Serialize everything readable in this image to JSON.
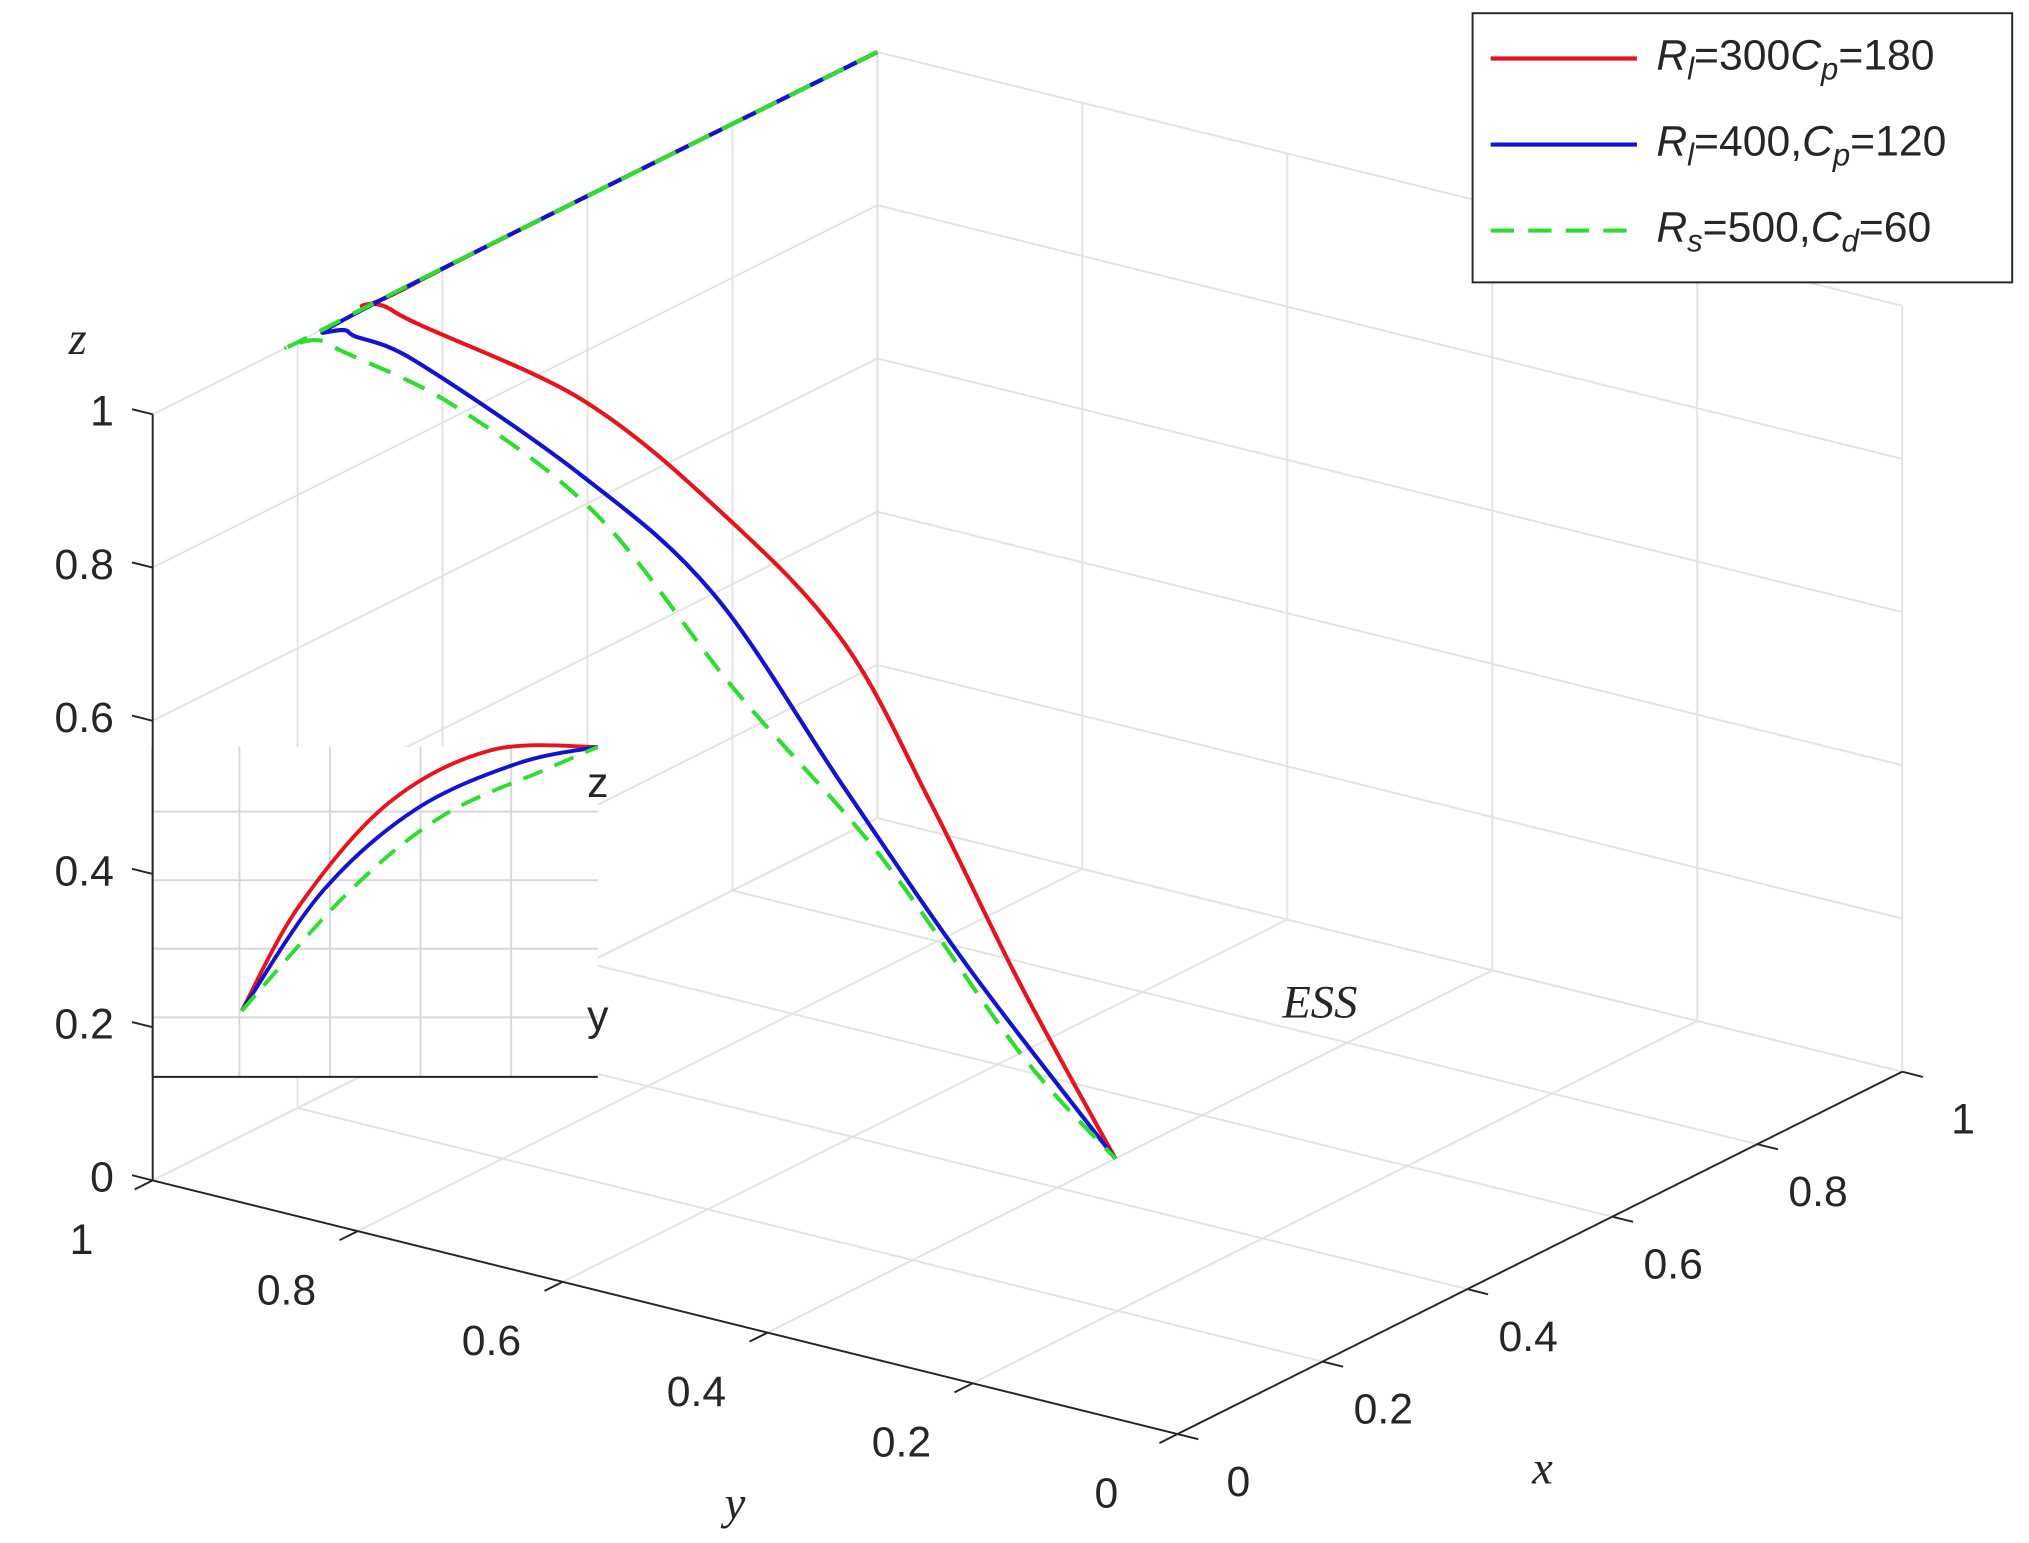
{
  "chart_data": {
    "type": "line3d",
    "xlabel": "x",
    "ylabel": "y",
    "zlabel": "z",
    "xlim": [
      0,
      1
    ],
    "ylim": [
      0,
      1
    ],
    "zlim": [
      0,
      1
    ],
    "xticks": [
      0,
      0.2,
      0.4,
      0.6,
      0.8,
      1
    ],
    "yticks": [
      0,
      0.2,
      0.4,
      0.6,
      0.8,
      1
    ],
    "zticks": [
      0,
      0.2,
      0.4,
      0.6,
      0.8,
      1
    ],
    "grid": true,
    "legend": "upper right",
    "annotations": [
      "ESS"
    ],
    "series": [
      {
        "name": "Rl=300Cp=180",
        "color": "#e8141c",
        "style": "solid",
        "x": [
          1,
          0.36,
          0.33,
          0.45,
          0.51,
          0.53,
          0.51,
          0.49,
          0.48
        ],
        "y": [
          1,
          1,
          1,
          0.9,
          0.8,
          0.7,
          0.6,
          0.5,
          0.4
        ],
        "z": [
          1,
          1,
          0.98,
          0.84,
          0.69,
          0.55,
          0.38,
          0.19,
          0
        ]
      },
      {
        "name": "Rl=400,Cp=120",
        "color": "#1212d2",
        "style": "solid",
        "x": [
          1,
          0.3,
          0.27,
          0.29,
          0.38,
          0.42,
          0.46,
          0.45,
          0.48
        ],
        "y": [
          1,
          1,
          1,
          0.95,
          0.85,
          0.75,
          0.65,
          0.52,
          0.4
        ],
        "z": [
          1,
          1,
          0.98,
          0.95,
          0.79,
          0.65,
          0.41,
          0.22,
          0
        ]
      },
      {
        "name": "Rs=500,Cd=60",
        "color": "#2ede2e",
        "style": "dashed",
        "x": [
          1,
          0.25,
          0.24,
          0.34,
          0.4,
          0.45,
          0.48,
          0.49,
          0.48
        ],
        "y": [
          1,
          1,
          1,
          0.95,
          0.85,
          0.75,
          0.63,
          0.5,
          0.4
        ],
        "z": [
          1,
          1,
          0.98,
          0.87,
          0.73,
          0.51,
          0.32,
          0.1,
          0
        ]
      }
    ],
    "inset": {
      "xlabel": "y",
      "ylabel": "z",
      "xlim": [
        0,
        1
      ],
      "ylim": [
        0,
        1
      ],
      "series": [
        {
          "x": [
            0.2,
            0.33,
            0.53,
            0.76,
            1
          ],
          "y": [
            0.2,
            0.52,
            0.83,
            0.99,
            1
          ]
        },
        {
          "x": [
            0.2,
            0.38,
            0.59,
            0.82,
            1
          ],
          "y": [
            0.2,
            0.56,
            0.81,
            0.95,
            1
          ]
        },
        {
          "x": [
            0.2,
            0.44,
            0.65,
            0.88,
            1
          ],
          "y": [
            0.2,
            0.56,
            0.79,
            0.93,
            1
          ]
        }
      ]
    }
  }
}
